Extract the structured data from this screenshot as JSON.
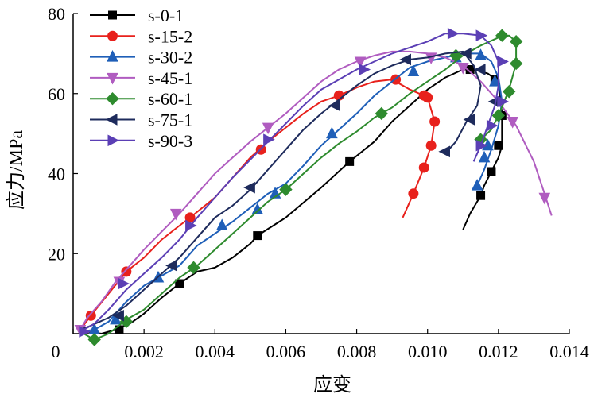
{
  "chart_data": {
    "type": "line",
    "xlabel": "应变",
    "ylabel": "应力/MPa",
    "xlim": [
      0,
      0.014
    ],
    "ylim": [
      0,
      80
    ],
    "xticks": [
      0,
      0.002,
      0.004,
      0.006,
      0.008,
      0.01,
      0.012,
      0.014
    ],
    "xtick_labels": [
      "0",
      "0.002",
      "0.004",
      "0.006",
      "0.008",
      "0.010",
      "0.012",
      "0.014"
    ],
    "yticks": [
      20,
      40,
      60,
      80
    ],
    "ytick_labels": [
      "20",
      "40",
      "60",
      "80"
    ],
    "origin_label": "0",
    "grid": false,
    "legend_position": "top-left",
    "series": [
      {
        "name": "s-0-1",
        "color": "#000000",
        "marker": "square",
        "points": [
          [
            0.0004,
            0.5
          ],
          [
            0.0008,
            0
          ],
          [
            0.0012,
            1
          ],
          [
            0.0016,
            2.5
          ],
          [
            0.002,
            5
          ],
          [
            0.0025,
            9
          ],
          [
            0.003,
            12.5
          ],
          [
            0.0035,
            15.5
          ],
          [
            0.004,
            16.5
          ],
          [
            0.0045,
            19
          ],
          [
            0.005,
            22.5
          ],
          [
            0.0052,
            24.5
          ],
          [
            0.006,
            29
          ],
          [
            0.007,
            36.5
          ],
          [
            0.0078,
            43
          ],
          [
            0.0085,
            48
          ],
          [
            0.009,
            53
          ],
          [
            0.0095,
            57
          ],
          [
            0.01,
            61
          ],
          [
            0.0105,
            64
          ],
          [
            0.011,
            66
          ],
          [
            0.0113,
            66
          ],
          [
            0.0117,
            65
          ],
          [
            0.012,
            63
          ],
          [
            0.0121,
            55
          ],
          [
            0.0121,
            47
          ],
          [
            0.012,
            44
          ],
          [
            0.0118,
            40.5
          ],
          [
            0.0116,
            37
          ],
          [
            0.0115,
            34.5
          ],
          [
            0.0112,
            30
          ],
          [
            0.011,
            26
          ]
        ],
        "marker_points": [
          [
            0.0013,
            1
          ],
          [
            0.003,
            12.5
          ],
          [
            0.0052,
            24.5
          ],
          [
            0.0078,
            43
          ],
          [
            0.0112,
            66
          ],
          [
            0.0119,
            63.5
          ],
          [
            0.0121,
            54.5
          ],
          [
            0.012,
            47
          ],
          [
            0.0118,
            40.5
          ],
          [
            0.0115,
            34.5
          ]
        ]
      },
      {
        "name": "s-15-2",
        "color": "#e8211c",
        "marker": "circle",
        "points": [
          [
            0.0002,
            1
          ],
          [
            0.0005,
            4.5
          ],
          [
            0.001,
            10
          ],
          [
            0.0015,
            15.5
          ],
          [
            0.002,
            19
          ],
          [
            0.0025,
            23.5
          ],
          [
            0.003,
            27
          ],
          [
            0.0033,
            29
          ],
          [
            0.004,
            34
          ],
          [
            0.0045,
            39
          ],
          [
            0.005,
            44
          ],
          [
            0.0055,
            48
          ],
          [
            0.006,
            51.5
          ],
          [
            0.0065,
            55
          ],
          [
            0.007,
            58
          ],
          [
            0.0075,
            59.5
          ],
          [
            0.008,
            61.5
          ],
          [
            0.0085,
            63
          ],
          [
            0.009,
            63.5
          ],
          [
            0.0095,
            61
          ],
          [
            0.0099,
            59.5
          ],
          [
            0.01,
            59
          ],
          [
            0.0101,
            56
          ],
          [
            0.0102,
            53
          ],
          [
            0.0101,
            47
          ],
          [
            0.0099,
            41.5
          ],
          [
            0.0096,
            35
          ],
          [
            0.0094,
            31
          ],
          [
            0.0093,
            29
          ]
        ],
        "marker_points": [
          [
            0.0005,
            4.5
          ],
          [
            0.0015,
            15.5
          ],
          [
            0.0033,
            29
          ],
          [
            0.0053,
            46
          ],
          [
            0.0075,
            59.5
          ],
          [
            0.0091,
            63.5
          ],
          [
            0.0099,
            59.5
          ],
          [
            0.01,
            59
          ],
          [
            0.0102,
            53
          ],
          [
            0.0101,
            47
          ],
          [
            0.0099,
            41.5
          ],
          [
            0.0096,
            35
          ]
        ]
      },
      {
        "name": "s-30-2",
        "color": "#1f5fb8",
        "marker": "triangle-up",
        "points": [
          [
            0.0002,
            0.5
          ],
          [
            0.0006,
            1
          ],
          [
            0.001,
            3
          ],
          [
            0.0015,
            8
          ],
          [
            0.002,
            12
          ],
          [
            0.0025,
            14.5
          ],
          [
            0.003,
            17
          ],
          [
            0.0035,
            22
          ],
          [
            0.004,
            25
          ],
          [
            0.0045,
            28
          ],
          [
            0.005,
            31.5
          ],
          [
            0.0055,
            35
          ],
          [
            0.006,
            37.5
          ],
          [
            0.0065,
            42
          ],
          [
            0.007,
            47
          ],
          [
            0.0075,
            51
          ],
          [
            0.008,
            55
          ],
          [
            0.0085,
            59.5
          ],
          [
            0.009,
            63
          ],
          [
            0.0095,
            66.5
          ],
          [
            0.01,
            68
          ],
          [
            0.0105,
            69
          ],
          [
            0.011,
            70
          ],
          [
            0.0115,
            70
          ],
          [
            0.0118,
            68
          ],
          [
            0.012,
            64
          ],
          [
            0.0121,
            58
          ],
          [
            0.012,
            52
          ],
          [
            0.0118,
            46
          ],
          [
            0.0116,
            41
          ],
          [
            0.0114,
            37
          ]
        ],
        "marker_points": [
          [
            0.0006,
            1
          ],
          [
            0.0012,
            3.5
          ],
          [
            0.0024,
            14
          ],
          [
            0.0042,
            27
          ],
          [
            0.0052,
            31
          ],
          [
            0.0057,
            35
          ],
          [
            0.0073,
            50
          ],
          [
            0.0096,
            65.5
          ],
          [
            0.0108,
            69
          ],
          [
            0.0115,
            69.5
          ],
          [
            0.0119,
            63
          ],
          [
            0.0117,
            47
          ],
          [
            0.0116,
            44
          ],
          [
            0.0114,
            37
          ]
        ]
      },
      {
        "name": "s-45-1",
        "color": "#b05cc0",
        "marker": "triangle-down",
        "points": [
          [
            0.0002,
            1
          ],
          [
            0.0004,
            4
          ],
          [
            0.0008,
            8
          ],
          [
            0.0012,
            13
          ],
          [
            0.0016,
            17
          ],
          [
            0.002,
            21
          ],
          [
            0.0025,
            25.5
          ],
          [
            0.003,
            30
          ],
          [
            0.0035,
            35
          ],
          [
            0.004,
            40
          ],
          [
            0.0045,
            44
          ],
          [
            0.005,
            48
          ],
          [
            0.0055,
            51.5
          ],
          [
            0.006,
            55
          ],
          [
            0.0065,
            59
          ],
          [
            0.007,
            63
          ],
          [
            0.0075,
            66
          ],
          [
            0.008,
            68
          ],
          [
            0.0085,
            69.5
          ],
          [
            0.009,
            70.5
          ],
          [
            0.0095,
            70.5
          ],
          [
            0.01,
            70
          ],
          [
            0.0105,
            69
          ],
          [
            0.011,
            67
          ],
          [
            0.0115,
            63
          ],
          [
            0.012,
            58
          ],
          [
            0.0125,
            52
          ],
          [
            0.013,
            43
          ],
          [
            0.0133,
            35
          ],
          [
            0.0135,
            29.5
          ]
        ],
        "marker_points": [
          [
            0.0002,
            1
          ],
          [
            0.0013,
            13
          ],
          [
            0.0029,
            30
          ],
          [
            0.0055,
            51.5
          ],
          [
            0.0081,
            68
          ],
          [
            0.0101,
            69
          ],
          [
            0.011,
            66.5
          ],
          [
            0.0124,
            53
          ],
          [
            0.0133,
            34
          ]
        ]
      },
      {
        "name": "s-60-1",
        "color": "#2e8b2e",
        "marker": "diamond",
        "points": [
          [
            0.0002,
            0.5
          ],
          [
            0.0006,
            -1.5
          ],
          [
            0.001,
            0
          ],
          [
            0.0015,
            3.5
          ],
          [
            0.002,
            6
          ],
          [
            0.0025,
            10
          ],
          [
            0.003,
            14
          ],
          [
            0.0035,
            17
          ],
          [
            0.004,
            21
          ],
          [
            0.0045,
            25
          ],
          [
            0.005,
            29
          ],
          [
            0.0055,
            33
          ],
          [
            0.006,
            36
          ],
          [
            0.0065,
            40
          ],
          [
            0.007,
            44
          ],
          [
            0.0075,
            47.5
          ],
          [
            0.008,
            50.5
          ],
          [
            0.0085,
            54
          ],
          [
            0.009,
            56.5
          ],
          [
            0.0095,
            60
          ],
          [
            0.01,
            63
          ],
          [
            0.0105,
            66
          ],
          [
            0.011,
            69.5
          ],
          [
            0.0115,
            72
          ],
          [
            0.012,
            74
          ],
          [
            0.0123,
            74.5
          ],
          [
            0.0125,
            73
          ],
          [
            0.0125,
            67.5
          ],
          [
            0.0123,
            61
          ],
          [
            0.012,
            54.5
          ],
          [
            0.0118,
            51
          ],
          [
            0.0115,
            48.5
          ]
        ],
        "marker_points": [
          [
            0.0006,
            -1.5
          ],
          [
            0.0015,
            3
          ],
          [
            0.0034,
            16.5
          ],
          [
            0.006,
            36
          ],
          [
            0.0087,
            55
          ],
          [
            0.0108,
            69.5
          ],
          [
            0.0115,
            48.5
          ],
          [
            0.0121,
            74.5
          ],
          [
            0.0125,
            73
          ],
          [
            0.0125,
            67.5
          ],
          [
            0.0123,
            60.5
          ],
          [
            0.012,
            54.5
          ]
        ]
      },
      {
        "name": "s-75-1",
        "color": "#1e2b5c",
        "marker": "triangle-left",
        "points": [
          [
            0.0002,
            1
          ],
          [
            0.0005,
            2
          ],
          [
            0.001,
            4
          ],
          [
            0.0015,
            7
          ],
          [
            0.002,
            11
          ],
          [
            0.0025,
            15
          ],
          [
            0.003,
            19
          ],
          [
            0.0035,
            24
          ],
          [
            0.004,
            29
          ],
          [
            0.0045,
            32
          ],
          [
            0.005,
            36
          ],
          [
            0.0055,
            41
          ],
          [
            0.006,
            46
          ],
          [
            0.0065,
            51
          ],
          [
            0.007,
            55
          ],
          [
            0.0075,
            58.5
          ],
          [
            0.008,
            62
          ],
          [
            0.0085,
            65
          ],
          [
            0.009,
            67
          ],
          [
            0.0095,
            68.5
          ],
          [
            0.01,
            69
          ],
          [
            0.0105,
            70
          ],
          [
            0.011,
            70.5
          ],
          [
            0.0113,
            67
          ],
          [
            0.0115,
            62
          ],
          [
            0.0114,
            57
          ],
          [
            0.0111,
            53
          ],
          [
            0.0108,
            48
          ],
          [
            0.0105,
            45
          ]
        ],
        "marker_points": [
          [
            0.0013,
            4.5
          ],
          [
            0.0028,
            17
          ],
          [
            0.005,
            36.5
          ],
          [
            0.0074,
            57
          ],
          [
            0.0094,
            68.5
          ],
          [
            0.0111,
            70
          ],
          [
            0.0115,
            66
          ],
          [
            0.0119,
            58
          ],
          [
            0.0112,
            53.5
          ],
          [
            0.0105,
            45.5
          ]
        ]
      },
      {
        "name": "s-90-3",
        "color": "#5b3fb5",
        "marker": "triangle-right",
        "points": [
          [
            0.0002,
            0.5
          ],
          [
            0.0006,
            2.5
          ],
          [
            0.001,
            6
          ],
          [
            0.0015,
            11
          ],
          [
            0.002,
            15
          ],
          [
            0.0025,
            19
          ],
          [
            0.003,
            23.5
          ],
          [
            0.0035,
            29
          ],
          [
            0.004,
            34
          ],
          [
            0.0045,
            39
          ],
          [
            0.005,
            43.5
          ],
          [
            0.0055,
            48
          ],
          [
            0.006,
            52.5
          ],
          [
            0.0065,
            57
          ],
          [
            0.007,
            61
          ],
          [
            0.0075,
            63.5
          ],
          [
            0.008,
            66
          ],
          [
            0.0085,
            68
          ],
          [
            0.009,
            70
          ],
          [
            0.0095,
            71.5
          ],
          [
            0.01,
            73
          ],
          [
            0.0105,
            75
          ],
          [
            0.011,
            75
          ],
          [
            0.0115,
            74.5
          ],
          [
            0.0118,
            72
          ],
          [
            0.012,
            68
          ],
          [
            0.012,
            62
          ],
          [
            0.0119,
            57
          ],
          [
            0.0117,
            52
          ],
          [
            0.0115,
            47
          ],
          [
            0.0113,
            43
          ]
        ],
        "marker_points": [
          [
            0.0003,
            0.5
          ],
          [
            0.0014,
            12.5
          ],
          [
            0.0033,
            27
          ],
          [
            0.0055,
            48.5
          ],
          [
            0.0082,
            66
          ],
          [
            0.0107,
            75
          ],
          [
            0.0115,
            74.5
          ],
          [
            0.0121,
            68
          ],
          [
            0.0121,
            58
          ],
          [
            0.0118,
            52
          ],
          [
            0.0115,
            47
          ]
        ]
      }
    ]
  }
}
